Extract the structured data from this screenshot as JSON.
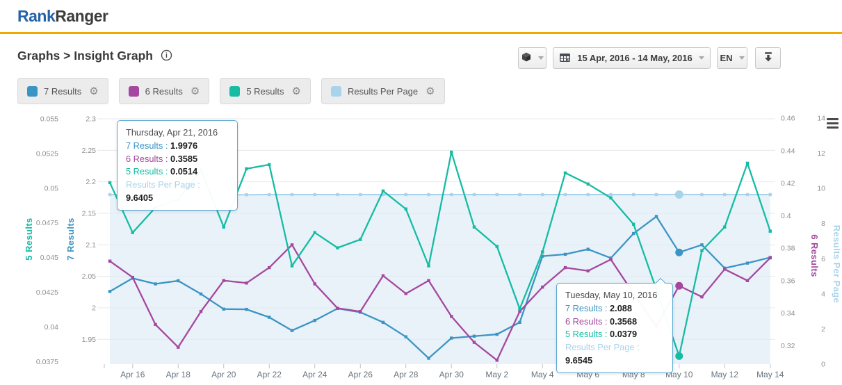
{
  "header": {
    "logo_primary": "Rank",
    "logo_secondary": "Ranger"
  },
  "toolbar": {
    "breadcrumb": "Graphs > Insight Graph",
    "date_range": "15 Apr, 2016 - 14 May, 2016",
    "language": "EN"
  },
  "tooltips": [
    {
      "date": "Thursday, Apr 21, 2016",
      "rows": [
        {
          "label": "7 Results",
          "value": "1.9976"
        },
        {
          "label": "6 Results",
          "value": "0.3585"
        },
        {
          "label": "5 Results",
          "value": "0.0514"
        },
        {
          "label": "Results Per Page",
          "value": "9.6405"
        }
      ]
    },
    {
      "date": "Tuesday, May 10, 2016",
      "rows": [
        {
          "label": "7 Results",
          "value": "2.088"
        },
        {
          "label": "6 Results",
          "value": "0.3568"
        },
        {
          "label": "5 Results",
          "value": "0.0379"
        },
        {
          "label": "Results Per Page",
          "value": "9.6545"
        }
      ]
    }
  ],
  "chart_data": {
    "type": "line",
    "title": "Insight Graph",
    "grid": "horizontal",
    "legend_position": "top",
    "highlight_category": "May 10",
    "categories": [
      "Apr 15",
      "Apr 16",
      "Apr 17",
      "Apr 18",
      "Apr 19",
      "Apr 20",
      "Apr 21",
      "Apr 22",
      "Apr 23",
      "Apr 24",
      "Apr 25",
      "Apr 26",
      "Apr 27",
      "Apr 28",
      "Apr 29",
      "Apr 30",
      "May 1",
      "May 2",
      "May 3",
      "May 4",
      "May 5",
      "May 6",
      "May 7",
      "May 8",
      "May 9",
      "May 10",
      "May 11",
      "May 12",
      "May 13",
      "May 14"
    ],
    "x_tick_labels": [
      "Apr 16",
      "Apr 18",
      "Apr 20",
      "Apr 22",
      "Apr 24",
      "Apr 26",
      "Apr 28",
      "Apr 30",
      "May 2",
      "May 4",
      "May 6",
      "May 8",
      "May 10",
      "May 12",
      "May 14"
    ],
    "series": [
      {
        "name": "7 Results",
        "axis": "y7",
        "color": "#3a94c4",
        "style": "line",
        "values": [
          2.026,
          2.047,
          2.038,
          2.043,
          2.022,
          1.998,
          1.9976,
          1.985,
          1.964,
          1.98,
          1.999,
          1.993,
          1.977,
          1.954,
          1.92,
          1.952,
          1.955,
          1.958,
          1.977,
          2.082,
          2.085,
          2.093,
          2.079,
          2.118,
          2.145,
          2.088,
          2.1,
          2.063,
          2.071,
          2.08
        ]
      },
      {
        "name": "6 Results",
        "axis": "y6",
        "color": "#a5479e",
        "style": "line",
        "values": [
          0.372,
          0.362,
          0.333,
          0.319,
          0.341,
          0.36,
          0.3585,
          0.368,
          0.382,
          0.358,
          0.343,
          0.341,
          0.363,
          0.352,
          0.36,
          0.338,
          0.322,
          0.311,
          0.341,
          0.356,
          0.368,
          0.366,
          0.373,
          0.352,
          0.332,
          0.3568,
          0.35,
          0.367,
          0.36,
          0.374
        ]
      },
      {
        "name": "5 Results",
        "axis": "y5",
        "color": "#15bca3",
        "style": "line",
        "values": [
          0.0504,
          0.0468,
          0.0486,
          0.0492,
          0.0513,
          0.0472,
          0.0514,
          0.0517,
          0.0444,
          0.0468,
          0.0457,
          0.0463,
          0.0498,
          0.0485,
          0.0444,
          0.0526,
          0.0472,
          0.0458,
          0.0413,
          0.0454,
          0.0511,
          0.0503,
          0.0493,
          0.0474,
          0.0427,
          0.0379,
          0.0455,
          0.0472,
          0.0518,
          0.0469
        ]
      },
      {
        "name": "Results Per Page",
        "axis": "yrpp",
        "color": "#a9d3ea",
        "style": "area-line",
        "values": [
          9.65,
          9.65,
          9.65,
          9.65,
          9.65,
          9.65,
          9.6405,
          9.65,
          9.65,
          9.65,
          9.65,
          9.65,
          9.65,
          9.65,
          9.65,
          9.65,
          9.65,
          9.65,
          9.65,
          9.65,
          9.65,
          9.65,
          9.65,
          9.65,
          9.65,
          9.6545,
          9.65,
          9.65,
          9.65,
          9.65
        ]
      }
    ],
    "axes": {
      "y7": {
        "title": "7 Results",
        "color": "#3a94c4",
        "side": "left-inner",
        "tick_labels": [
          "2.3",
          "2.25",
          "2.2",
          "2.15",
          "2.1",
          "2.05",
          "2",
          "1.95"
        ],
        "min": 1.95,
        "max": 2.3
      },
      "y5": {
        "title": "5 Results",
        "color": "#15bca3",
        "side": "left-outer",
        "tick_labels": [
          "0.055",
          "0.0525",
          "0.05",
          "0.0475",
          "0.045",
          "0.0425",
          "0.04",
          "0.0375"
        ],
        "min": 0.0375,
        "max": 0.055
      },
      "y6": {
        "title": "6 Results",
        "color": "#a5479e",
        "side": "right-inner",
        "tick_labels": [
          "0.46",
          "0.44",
          "0.42",
          "0.4",
          "0.38",
          "0.36",
          "0.34",
          "0.32"
        ],
        "min": 0.32,
        "max": 0.46
      },
      "yrpp": {
        "title": "Results Per Page",
        "color": "#a9d3ea",
        "side": "right-outer",
        "tick_labels": [
          "14",
          "12",
          "10",
          "8",
          "6",
          "4",
          "2",
          "0"
        ],
        "min": 0,
        "max": 14
      }
    },
    "colors": {
      "area_fill": "#dbeaf5",
      "gridline": "#e8e8e8",
      "tick_text": "#8f8f8f",
      "x_label_text": "#68737d"
    }
  }
}
